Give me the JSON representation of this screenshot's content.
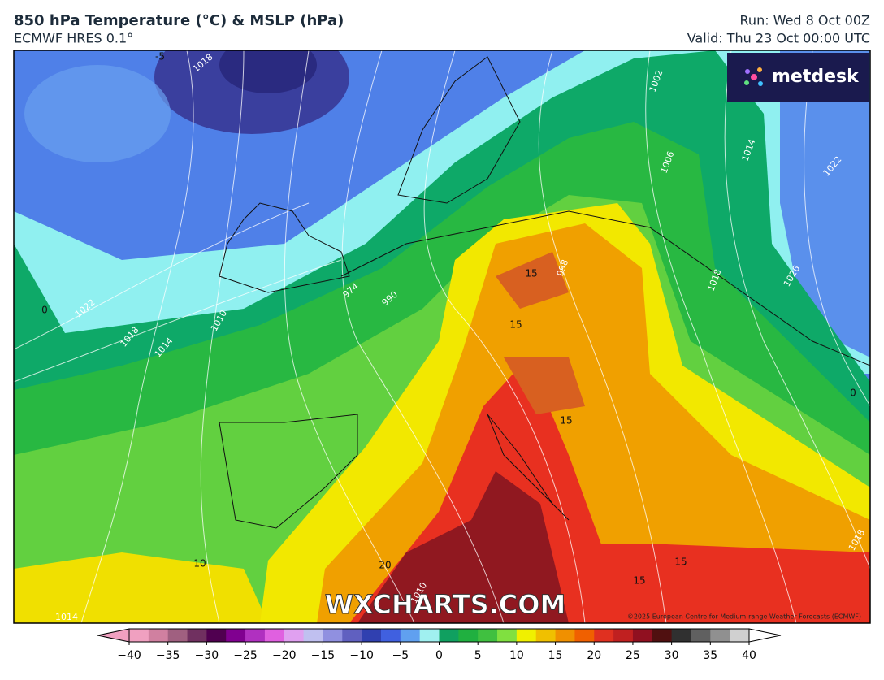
{
  "header": {
    "title": "850 hPa Temperature (°C) & MSLP (hPa)",
    "subtitle": "ECMWF HRES 0.1°",
    "run": "Run: Wed 8 Oct 00Z",
    "valid": "Valid: Thu 23 Oct 00:00 UTC"
  },
  "logo": "metdesk",
  "watermark": "WXCHARTS.COM",
  "copyright": "©2025 European Centre for Medium-range Weather Forecasts (ECMWF)",
  "map_labels": {
    "isobars": [
      "1018",
      "1002",
      "1006",
      "1014",
      "1022",
      "1026",
      "1018",
      "998",
      "990",
      "974",
      "1022",
      "1018",
      "1014",
      "1010",
      "1014",
      "1010",
      "1018"
    ],
    "temperatures": [
      "-5",
      "15",
      "15",
      "15",
      "0",
      "0",
      "10",
      "20",
      "15",
      "15"
    ]
  },
  "colorbar": {
    "range": [
      -40,
      40
    ],
    "ticks": [
      {
        "value": -40,
        "label": "−40"
      },
      {
        "value": -35,
        "label": "−35"
      },
      {
        "value": -30,
        "label": "−30"
      },
      {
        "value": -25,
        "label": "−25"
      },
      {
        "value": -20,
        "label": "−20"
      },
      {
        "value": -15,
        "label": "−15"
      },
      {
        "value": -10,
        "label": "−10"
      },
      {
        "value": -5,
        "label": "−5"
      },
      0,
      5,
      10,
      15,
      20,
      25,
      30,
      35,
      40
    ],
    "colors": [
      "#f0a0c0",
      "#d080a0",
      "#a06080",
      "#703060",
      "#500050",
      "#800090",
      "#b030c0",
      "#e060e0",
      "#e0a0f0",
      "#c0c0f0",
      "#9090e0",
      "#6060c0",
      "#3040b0",
      "#4060e0",
      "#60a0f0",
      "#a0f0f0",
      "#10a060",
      "#20b040",
      "#40c040",
      "#80e040",
      "#f0f000",
      "#f0c000",
      "#f09000",
      "#f06000",
      "#e03020",
      "#c02020",
      "#901020",
      "#501010",
      "#303030",
      "#606060",
      "#909090",
      "#d0d0d0"
    ]
  }
}
